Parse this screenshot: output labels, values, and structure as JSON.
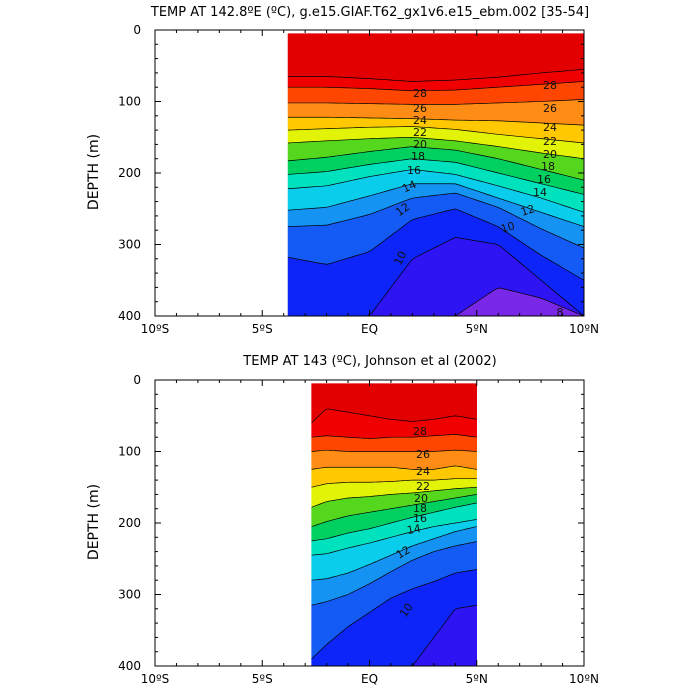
{
  "chart_data": [
    {
      "type": "heatmap",
      "subtype": "filled-contour",
      "title": "TEMP AT 142.8ºE (ºC), g.e15.GIAF.T62_gx1v6.e15_ebm.002 [35-54]",
      "xlabel": "",
      "ylabel": "DEPTH (m)",
      "xlim": [
        -10,
        10
      ],
      "ylim": [
        400,
        0
      ],
      "y_inverted": true,
      "data_xrange": [
        -3.8,
        10
      ],
      "data_yrange": [
        5,
        400
      ],
      "x_ticks": [
        -10,
        -5,
        0,
        5,
        10
      ],
      "x_tick_labels": [
        "10ºS",
        "5ºS",
        "EQ",
        "5ºN",
        "10ºN"
      ],
      "y_ticks": [
        0,
        100,
        200,
        300,
        400
      ],
      "y_tick_labels": [
        "0",
        "100",
        "200",
        "300",
        "400"
      ],
      "contour_levels": [
        8,
        9,
        10,
        11,
        12,
        13,
        14,
        15,
        16,
        17,
        18,
        19,
        20,
        21,
        22,
        23,
        24,
        25,
        26,
        27,
        28,
        29,
        30
      ],
      "isotherm_depths_x": [
        -3.8,
        -2,
        0,
        2,
        4,
        6,
        8,
        10
      ],
      "isotherms": [
        {
          "temp": 29,
          "depths": [
            65,
            65,
            68,
            72,
            70,
            66,
            60,
            55
          ]
        },
        {
          "temp": 28,
          "depths": [
            80,
            80,
            82,
            85,
            84,
            80,
            76,
            72
          ]
        },
        {
          "temp": 26,
          "depths": [
            102,
            102,
            103,
            104,
            104,
            102,
            100,
            97
          ]
        },
        {
          "temp": 24,
          "depths": [
            122,
            122,
            123,
            124,
            126,
            127,
            130,
            133
          ]
        },
        {
          "temp": 22,
          "depths": [
            140,
            138,
            136,
            135,
            139,
            146,
            152,
            158
          ]
        },
        {
          "temp": 20,
          "depths": [
            158,
            155,
            152,
            150,
            155,
            163,
            172,
            180
          ]
        },
        {
          "temp": 18,
          "depths": [
            183,
            178,
            170,
            163,
            168,
            180,
            195,
            210
          ]
        },
        {
          "temp": 16,
          "depths": [
            202,
            198,
            188,
            180,
            185,
            200,
            215,
            230
          ]
        },
        {
          "temp": 14,
          "depths": [
            222,
            218,
            205,
            195,
            202,
            218,
            235,
            255
          ]
        },
        {
          "temp": 12,
          "depths": [
            252,
            248,
            232,
            215,
            215,
            235,
            255,
            275
          ]
        },
        {
          "temp": 11,
          "depths": [
            275,
            273,
            258,
            235,
            228,
            248,
            278,
            305
          ]
        },
        {
          "temp": 10,
          "depths": [
            318,
            328,
            310,
            265,
            250,
            275,
            315,
            350
          ]
        },
        {
          "temp": 9,
          "depths": [
            400,
            400,
            400,
            320,
            290,
            300,
            350,
            400
          ]
        },
        {
          "temp": 8,
          "depths": [
            400,
            400,
            400,
            400,
            400,
            360,
            375,
            400
          ]
        }
      ],
      "contour_labels": [
        "28",
        "26",
        "24",
        "22",
        "20",
        "18",
        "16",
        "14",
        "12",
        "10",
        "28",
        "26",
        "24",
        "22",
        "20",
        "18",
        "16",
        "14",
        "12",
        "10",
        "8"
      ]
    },
    {
      "type": "heatmap",
      "subtype": "filled-contour",
      "title": "TEMP AT 143 (ºC), Johnson et al (2002)",
      "xlabel": "",
      "ylabel": "DEPTH (m)",
      "xlim": [
        -10,
        10
      ],
      "ylim": [
        400,
        0
      ],
      "y_inverted": true,
      "data_xrange": [
        -2.7,
        5
      ],
      "data_yrange": [
        5,
        400
      ],
      "x_ticks": [
        -10,
        -5,
        0,
        5,
        10
      ],
      "x_tick_labels": [
        "10ºS",
        "5ºS",
        "EQ",
        "5ºN",
        "10ºN"
      ],
      "y_ticks": [
        0,
        100,
        200,
        300,
        400
      ],
      "y_tick_labels": [
        "0",
        "100",
        "200",
        "300",
        "400"
      ],
      "contour_levels": [
        9,
        10,
        11,
        12,
        13,
        14,
        15,
        16,
        17,
        18,
        19,
        20,
        21,
        22,
        23,
        24,
        25,
        26,
        27,
        28,
        29,
        30
      ],
      "isotherm_depths_x": [
        -2.7,
        -2,
        -1,
        0,
        1,
        2,
        3,
        4,
        5
      ],
      "isotherms": [
        {
          "temp": 29,
          "depths": [
            60,
            40,
            45,
            50,
            55,
            58,
            55,
            50,
            55
          ]
        },
        {
          "temp": 28,
          "depths": [
            80,
            78,
            80,
            82,
            80,
            80,
            78,
            76,
            80
          ]
        },
        {
          "temp": 26,
          "depths": [
            100,
            98,
            100,
            100,
            100,
            100,
            100,
            98,
            100
          ]
        },
        {
          "temp": 24,
          "depths": [
            125,
            122,
            122,
            122,
            122,
            125,
            125,
            120,
            125
          ]
        },
        {
          "temp": 22,
          "depths": [
            150,
            145,
            143,
            143,
            142,
            140,
            140,
            138,
            138
          ]
        },
        {
          "temp": 20,
          "depths": [
            178,
            170,
            165,
            163,
            160,
            158,
            155,
            152,
            150
          ]
        },
        {
          "temp": 18,
          "depths": [
            205,
            198,
            190,
            185,
            180,
            175,
            170,
            165,
            160
          ]
        },
        {
          "temp": 16,
          "depths": [
            225,
            222,
            214,
            208,
            200,
            192,
            185,
            178,
            172
          ]
        },
        {
          "temp": 14,
          "depths": [
            245,
            243,
            235,
            228,
            220,
            212,
            205,
            200,
            195
          ]
        },
        {
          "temp": 12,
          "depths": [
            280,
            278,
            270,
            258,
            245,
            232,
            222,
            212,
            205
          ]
        },
        {
          "temp": 11,
          "depths": [
            315,
            310,
            300,
            285,
            268,
            252,
            240,
            232,
            226
          ]
        },
        {
          "temp": 10,
          "depths": [
            390,
            370,
            345,
            325,
            305,
            292,
            282,
            270,
            265
          ]
        },
        {
          "temp": 9,
          "depths": [
            400,
            400,
            400,
            400,
            400,
            400,
            360,
            320,
            315
          ]
        }
      ],
      "contour_labels": [
        "28",
        "26",
        "24",
        "22",
        "20",
        "18",
        "16",
        "14",
        "12",
        "10"
      ]
    }
  ]
}
